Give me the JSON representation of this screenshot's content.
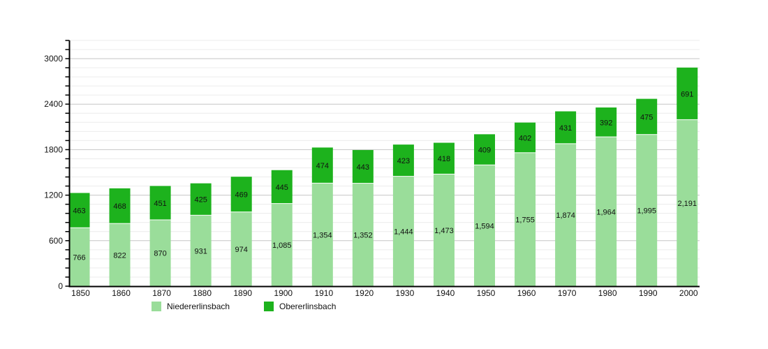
{
  "chart_data": {
    "type": "bar",
    "variant": "stacked-column",
    "title": "",
    "xlabel": "",
    "ylabel": "",
    "categories": [
      "1850",
      "1860",
      "1870",
      "1880",
      "1890",
      "1900",
      "1910",
      "1920",
      "1930",
      "1940",
      "1950",
      "1960",
      "1970",
      "1980",
      "1990",
      "2000"
    ],
    "series": [
      {
        "name": "Niedererlinsbach",
        "color": "#9add9a",
        "values": [
          766,
          822,
          870,
          931,
          974,
          1085,
          1354,
          1352,
          1444,
          1473,
          1594,
          1755,
          1874,
          1964,
          1995,
          2191
        ],
        "value_labels": [
          "766",
          "822",
          "870",
          "931",
          "974",
          "1,085",
          "1,354",
          "1,352",
          "1,444",
          "1,473",
          "1,594",
          "1,755",
          "1,874",
          "1,964",
          "1,995",
          "2,191"
        ]
      },
      {
        "name": "Obererlinsbach",
        "color": "#1db21d",
        "values": [
          463,
          468,
          451,
          425,
          469,
          445,
          474,
          443,
          423,
          418,
          409,
          402,
          431,
          392,
          475,
          691
        ],
        "value_labels": [
          "463",
          "468",
          "451",
          "425",
          "469",
          "445",
          "474",
          "443",
          "423",
          "418",
          "409",
          "402",
          "431",
          "392",
          "475",
          "691"
        ]
      }
    ],
    "y_axis": {
      "min": 0,
      "max": 3240,
      "major_step": 600,
      "minor_step": 120,
      "major_tick_labels": [
        "0",
        "600",
        "1200",
        "1800",
        "2400",
        "3000"
      ]
    },
    "grid": "on",
    "legend_position": "bottom",
    "colors": {
      "axis": "#000000",
      "major_grid": "#c6c6c6",
      "minor_grid": "#ececec",
      "label_text": "#111111",
      "value_text": "#000000",
      "background": "#ffffff",
      "segment_gap": "#ffffff"
    }
  },
  "legend": {
    "items": [
      {
        "label": "Niedererlinsbach",
        "color": "#9add9a"
      },
      {
        "label": "Obererlinsbach",
        "color": "#1db21d"
      }
    ]
  }
}
